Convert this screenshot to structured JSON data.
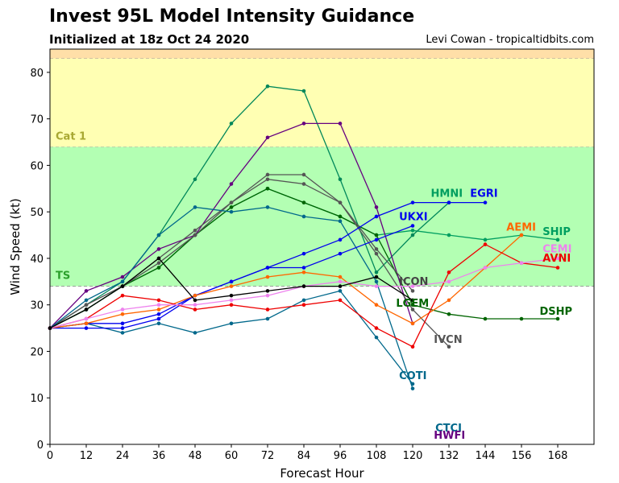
{
  "header": {
    "title": "Invest 95L Model Intensity Guidance",
    "subtitle": "Initialized at 18z Oct 24 2020",
    "credit": "Levi Cowan - tropicaltidbits.com"
  },
  "chart_data": {
    "type": "line",
    "xlabel": "Forecast Hour",
    "ylabel": "Wind Speed (kt)",
    "xlim": [
      0,
      180
    ],
    "ylim": [
      0,
      85
    ],
    "xticks": [
      0,
      12,
      24,
      36,
      48,
      60,
      72,
      84,
      96,
      108,
      120,
      132,
      144,
      156,
      168
    ],
    "yticks": [
      0,
      10,
      20,
      30,
      40,
      50,
      60,
      70,
      80
    ],
    "grid": false,
    "zones": [
      {
        "label": "TS",
        "from": 34,
        "to": 64,
        "color": "#b3ffb3",
        "label_color": "#2ca02c"
      },
      {
        "label": "Cat 1",
        "from": 64,
        "to": 83,
        "color": "#ffffb3",
        "label_color": "#a8a832"
      },
      {
        "label": "",
        "from": 83,
        "to": 85,
        "color": "#ffdfa8",
        "label_color": "#000000"
      }
    ],
    "series": [
      {
        "name": "SHIP",
        "color": "#009e60",
        "x": [
          0,
          12,
          24,
          36,
          48,
          60,
          72,
          84,
          96,
          108,
          120,
          132,
          144,
          156,
          168
        ],
        "y": [
          25,
          29,
          34,
          38,
          45,
          51,
          55,
          52,
          49,
          45,
          46,
          45,
          44,
          45,
          44
        ]
      },
      {
        "name": "DSHP",
        "color": "#006400",
        "x": [
          0,
          12,
          24,
          36,
          48,
          60,
          72,
          84,
          96,
          108,
          120,
          132,
          144,
          156,
          168
        ],
        "y": [
          25,
          29,
          34,
          38,
          45,
          51,
          55,
          52,
          49,
          45,
          30,
          28,
          27,
          27,
          27
        ]
      },
      {
        "name": "HMNI",
        "color": "#00875a",
        "x": [
          0,
          12,
          24,
          36,
          48,
          60,
          72,
          84,
          96,
          108,
          120,
          132
        ],
        "y": [
          25,
          30,
          35,
          45,
          57,
          69,
          77,
          76,
          57,
          37,
          45,
          52
        ]
      },
      {
        "name": "HWFI",
        "color": "#660080",
        "x": [
          0,
          12,
          24,
          36,
          48,
          60,
          72,
          84,
          96,
          108,
          120
        ],
        "y": [
          25,
          33,
          36,
          42,
          45,
          56,
          66,
          69,
          69,
          51,
          26
        ]
      },
      {
        "name": "LGEM",
        "color": "#555555",
        "x": [
          0,
          12,
          24,
          36,
          48,
          60,
          72,
          84,
          96,
          108,
          120
        ],
        "y": [
          25,
          30,
          34,
          40,
          46,
          52,
          58,
          58,
          52,
          42,
          33
        ]
      },
      {
        "name": "IVCN",
        "color": "#555555",
        "x": [
          0,
          12,
          24,
          36,
          48,
          60,
          72,
          84,
          96,
          108,
          120,
          132
        ],
        "y": [
          25,
          30,
          34,
          39,
          45,
          52,
          57,
          56,
          52,
          41,
          29,
          21
        ]
      },
      {
        "name": "CTCI",
        "color": "#00688b",
        "x": [
          0,
          12,
          24,
          36,
          48,
          60,
          72,
          84,
          96,
          108,
          120
        ],
        "y": [
          25,
          31,
          35,
          45,
          51,
          50,
          51,
          49,
          48,
          35,
          12
        ]
      },
      {
        "name": "COTI",
        "color": "#00688b",
        "x": [
          0,
          12,
          24,
          36,
          48,
          60,
          72,
          84,
          96,
          108,
          120
        ],
        "y": [
          25,
          26,
          24,
          26,
          24,
          26,
          27,
          31,
          33,
          23,
          13
        ]
      },
      {
        "name": "EGRI",
        "color": "#0000ee",
        "x": [
          0,
          12,
          24,
          36,
          48,
          60,
          72,
          84,
          96,
          108,
          120,
          132,
          144
        ],
        "y": [
          25,
          25,
          25,
          27,
          32,
          35,
          38,
          41,
          44,
          49,
          52,
          52,
          52
        ]
      },
      {
        "name": "UKXI",
        "color": "#0000ee",
        "x": [
          0,
          12,
          24,
          36,
          48,
          60,
          72,
          84,
          96,
          108,
          120
        ],
        "y": [
          25,
          26,
          26,
          28,
          32,
          35,
          38,
          38,
          41,
          44,
          47
        ]
      },
      {
        "name": "AEMI",
        "color": "#ff6600",
        "x": [
          0,
          12,
          24,
          36,
          48,
          60,
          72,
          84,
          96,
          108,
          120,
          132,
          144,
          156
        ],
        "y": [
          25,
          26,
          28,
          29,
          32,
          34,
          36,
          37,
          36,
          30,
          26,
          31,
          38,
          45
        ]
      },
      {
        "name": "AVNI",
        "color": "#ee0000",
        "x": [
          0,
          12,
          24,
          36,
          48,
          60,
          72,
          84,
          96,
          108,
          120,
          132,
          144,
          156,
          168
        ],
        "y": [
          25,
          27,
          32,
          31,
          29,
          30,
          29,
          30,
          31,
          25,
          21,
          37,
          43,
          39,
          38
        ]
      },
      {
        "name": "CEMI",
        "color": "#ee82ee",
        "x": [
          0,
          12,
          24,
          36,
          48,
          60,
          72,
          84,
          96,
          108,
          120,
          132,
          144,
          156,
          168
        ],
        "y": [
          25,
          27,
          29,
          30,
          30,
          31,
          32,
          34,
          35,
          34,
          34,
          35,
          38,
          39,
          40
        ]
      },
      {
        "name": "ICON",
        "color": "#000000",
        "x": [
          0,
          12,
          24,
          36,
          48,
          60,
          72,
          84,
          96,
          108,
          120
        ],
        "y": [
          25,
          29,
          34,
          40,
          31,
          32,
          33,
          34,
          34,
          36,
          31
        ]
      }
    ],
    "annotations": [
      {
        "text": "HMNI",
        "x": 126,
        "y": 53.2,
        "color": "#009e60"
      },
      {
        "text": "EGRI",
        "x": 139,
        "y": 53.2,
        "color": "#0000ee"
      },
      {
        "text": "UKXI",
        "x": 115.5,
        "y": 48.2,
        "color": "#0000ee"
      },
      {
        "text": "AEMI",
        "x": 151,
        "y": 46,
        "color": "#ff6600"
      },
      {
        "text": "SHIP",
        "x": 163,
        "y": 45,
        "color": "#009e60"
      },
      {
        "text": "CEMI",
        "x": 163,
        "y": 41.3,
        "color": "#ee82ee"
      },
      {
        "text": "AVNI",
        "x": 163,
        "y": 39.3,
        "color": "#ee0000"
      },
      {
        "text": "ICON",
        "x": 115.5,
        "y": 34.3,
        "color": "#444444"
      },
      {
        "text": "LGEM",
        "x": 114.5,
        "y": 29.6,
        "color": "#006400"
      },
      {
        "text": "DSHP",
        "x": 162,
        "y": 27.9,
        "color": "#006400"
      },
      {
        "text": "IVCN",
        "x": 127,
        "y": 21.8,
        "color": "#555555"
      },
      {
        "text": "COTI",
        "x": 115.5,
        "y": 14,
        "color": "#00688b"
      },
      {
        "text": "CTCI",
        "x": 127.5,
        "y": 2.8,
        "color": "#00688b"
      },
      {
        "text": "HWFI",
        "x": 127,
        "y": 1.2,
        "color": "#660080"
      }
    ]
  }
}
